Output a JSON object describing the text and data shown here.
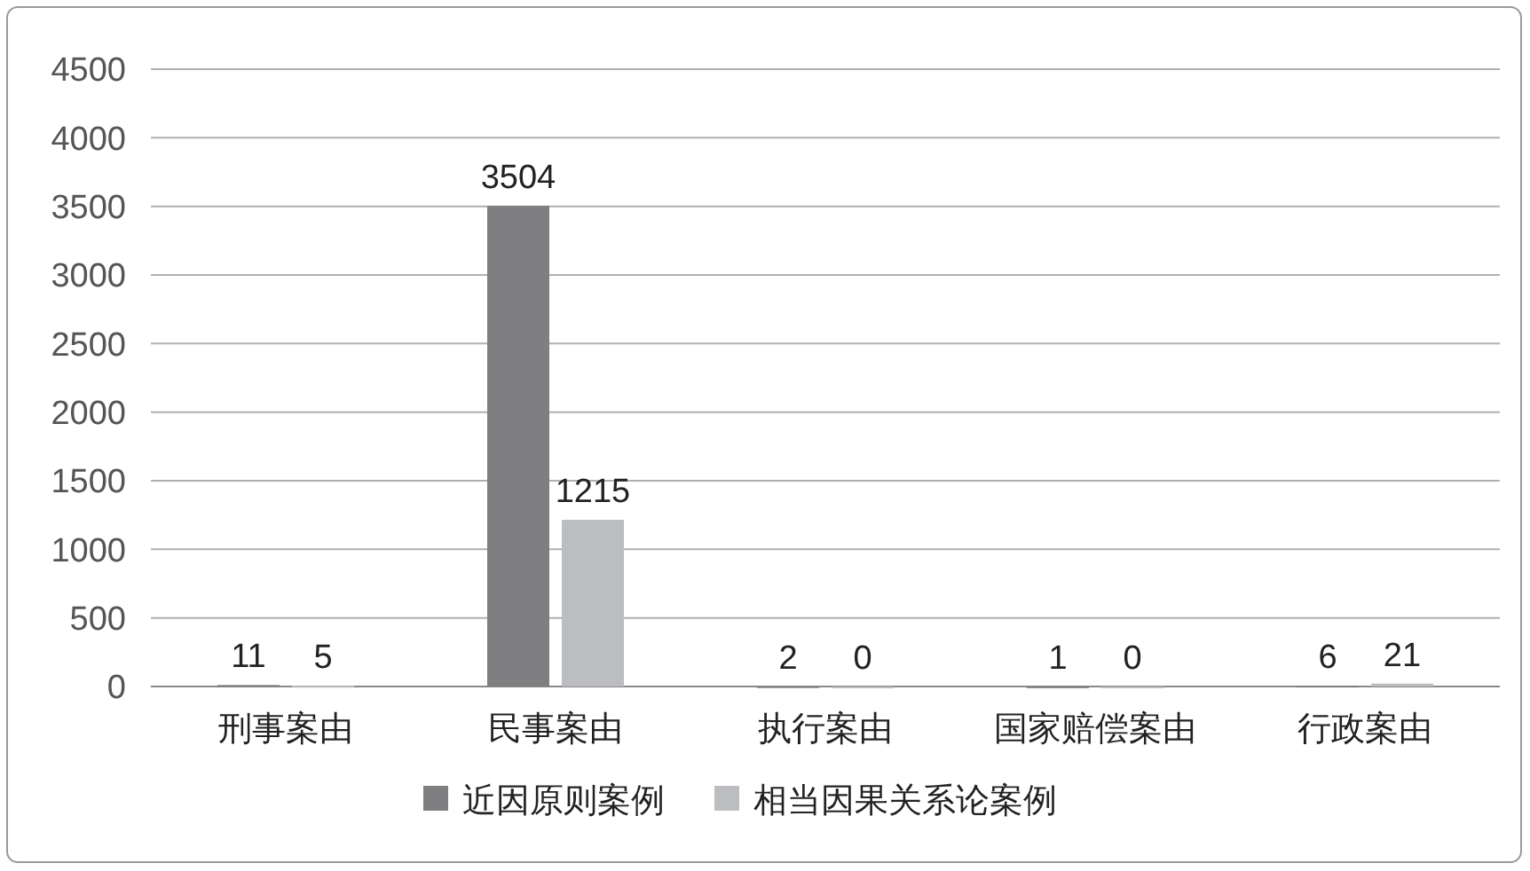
{
  "chart_data": {
    "type": "bar",
    "categories": [
      "刑事案由",
      "民事案由",
      "执行案由",
      "国家赔偿案由",
      "行政案由"
    ],
    "series": [
      {
        "name": "近因原则案例",
        "color": "#7f7f81",
        "values": [
          11,
          3504,
          2,
          1,
          6
        ]
      },
      {
        "name": "相当因果关系论案例",
        "color": "#bcbdc0",
        "values": [
          5,
          1215,
          0,
          0,
          21
        ]
      }
    ],
    "ylim": [
      0,
      4500
    ],
    "yticks": [
      0,
      500,
      1000,
      1500,
      2000,
      2500,
      3000,
      3500,
      4000,
      4500
    ],
    "grid": "y",
    "legend": "bottom",
    "data_labels": true
  }
}
